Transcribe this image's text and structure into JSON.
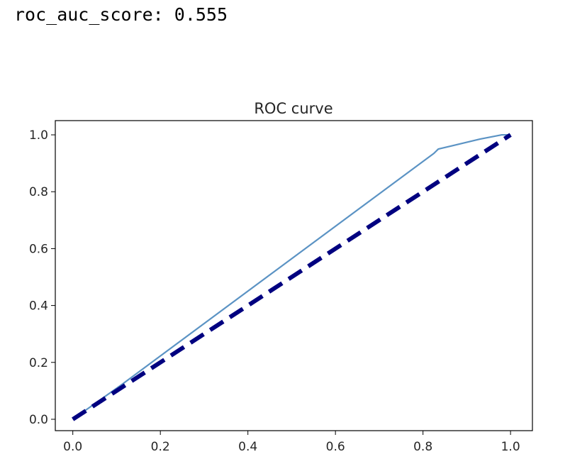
{
  "output": {
    "score_text": "roc_auc_score: 0.555"
  },
  "chart_data": {
    "type": "line",
    "title": "ROC curve",
    "xlabel": "",
    "ylabel": "",
    "xlim": [
      -0.04,
      1.05
    ],
    "ylim": [
      -0.04,
      1.05
    ],
    "x_ticks": [
      0.0,
      0.2,
      0.4,
      0.6,
      0.8,
      1.0
    ],
    "y_ticks": [
      0.0,
      0.2,
      0.4,
      0.6,
      0.8,
      1.0
    ],
    "x_tick_labels": [
      "0.0",
      "0.2",
      "0.4",
      "0.6",
      "0.8",
      "1.0"
    ],
    "y_tick_labels": [
      "0.0",
      "0.2",
      "0.4",
      "0.6",
      "0.8",
      "1.0"
    ],
    "grid": false,
    "series": [
      {
        "style": "solid",
        "color": "#5b93c4",
        "x": [
          0.0,
          0.11,
          0.825,
          0.835,
          0.93,
          0.98,
          1.0
        ],
        "y": [
          0.0,
          0.12,
          0.935,
          0.95,
          0.985,
          1.0,
          1.0
        ]
      },
      {
        "style": "dashed",
        "color": "#000080",
        "x": [
          0.0,
          1.0
        ],
        "y": [
          0.0,
          1.0
        ]
      }
    ]
  }
}
